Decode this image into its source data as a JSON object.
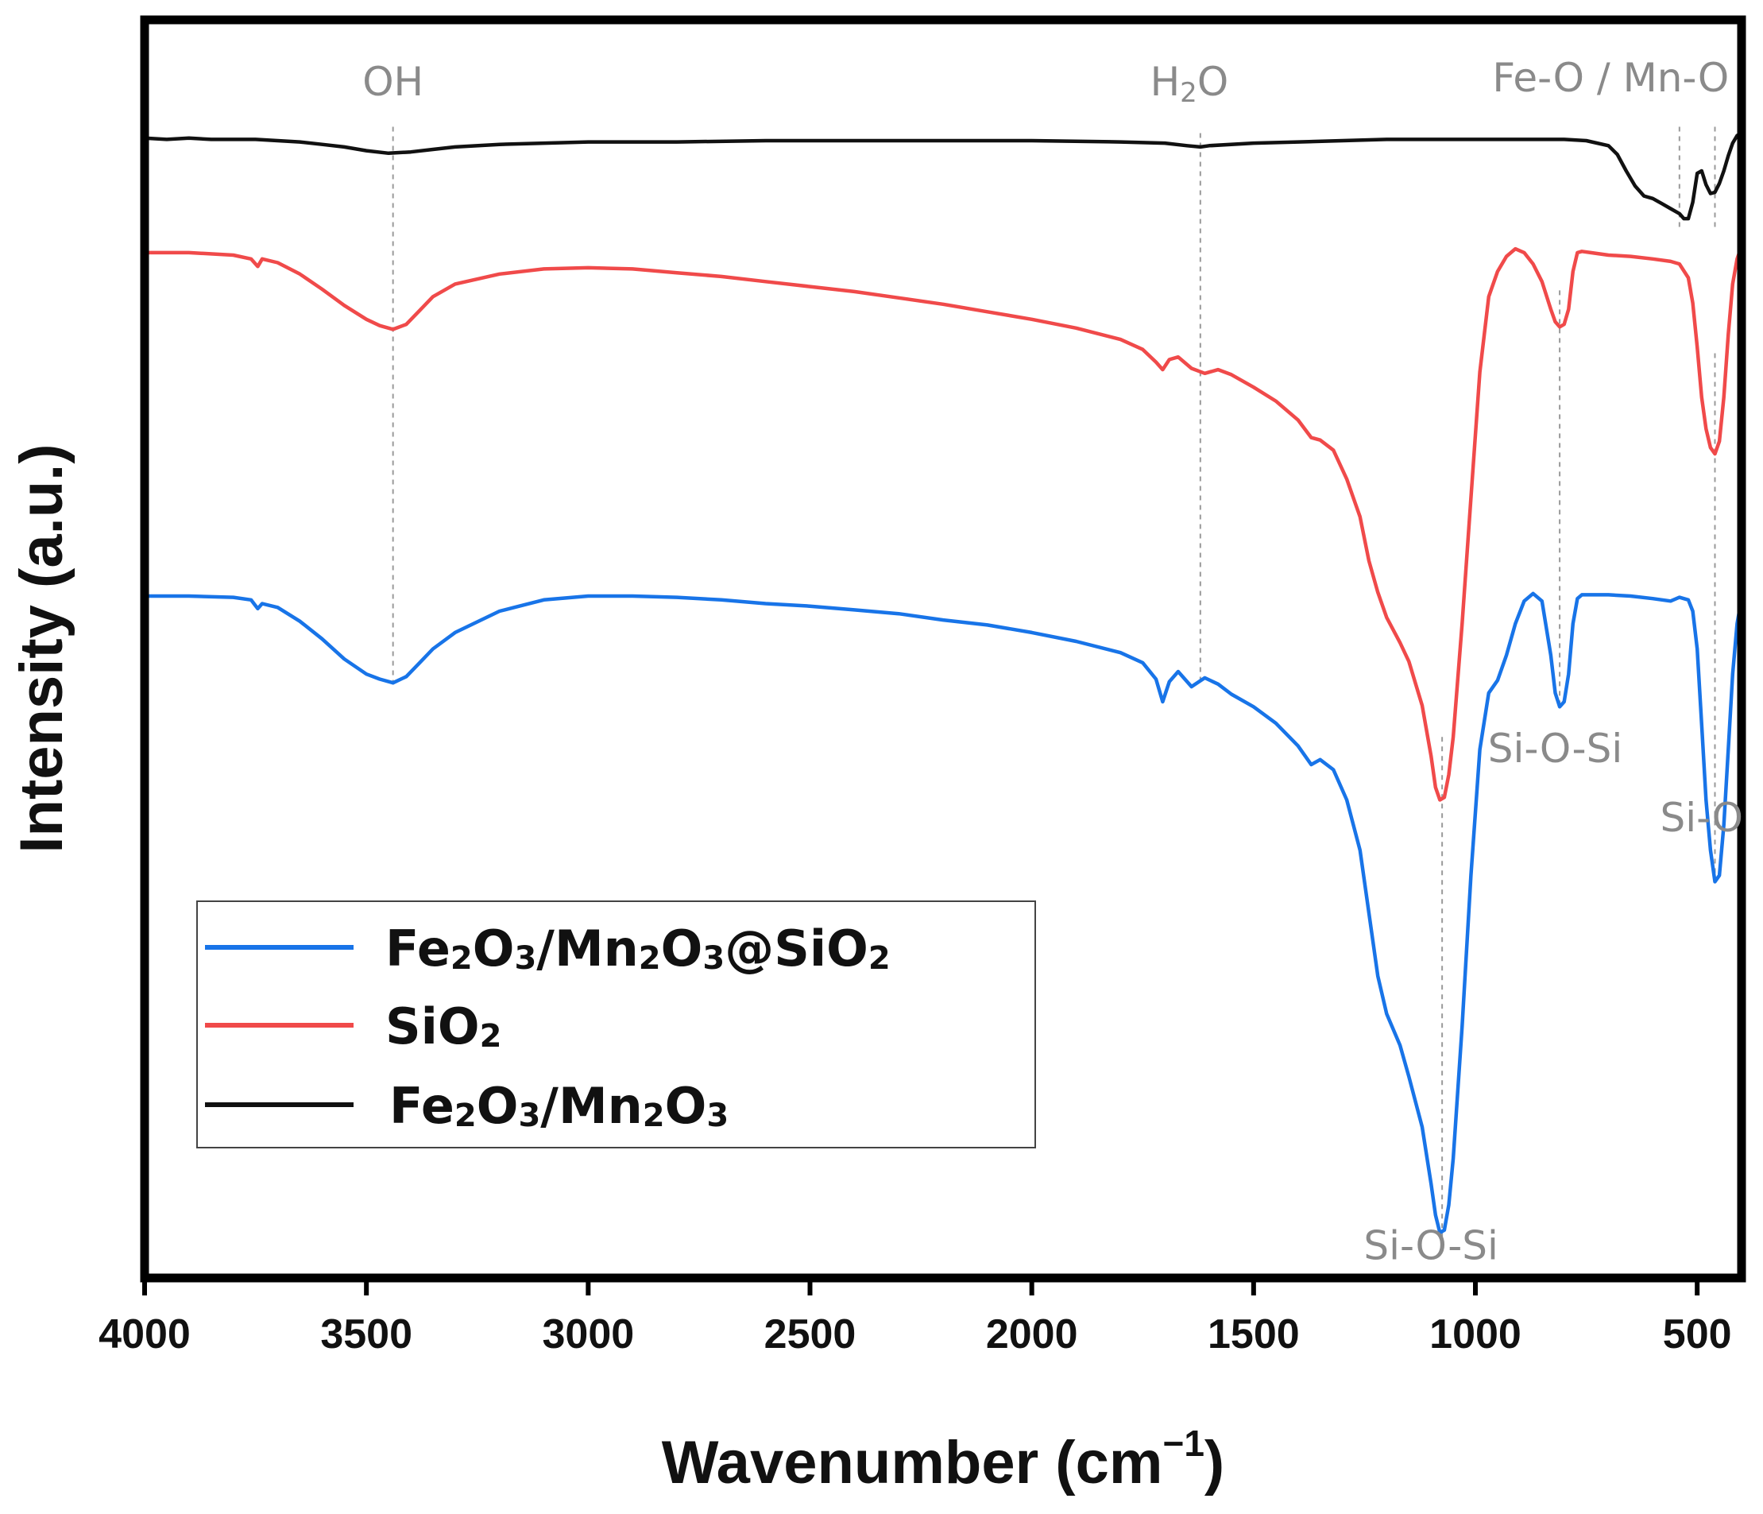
{
  "chart_data": {
    "type": "line",
    "title": "",
    "xlabel": "Wavenumber (cm",
    "xlabel_sup": "−1",
    "xlabel_close": ")",
    "ylabel": "Intensity (a.u.)",
    "xlim": [
      4000,
      400
    ],
    "ylim": [
      0,
      100
    ],
    "x_ticks": [
      4000,
      3500,
      3000,
      2500,
      2000,
      1500,
      1000,
      500
    ],
    "x_tick_labels": [
      "4000",
      "3500",
      "3000",
      "2500",
      "2000",
      "1500",
      "1000",
      "500"
    ],
    "y_ticks_shown": false,
    "grid": false,
    "legend_position": "lower-left",
    "series": [
      {
        "name": "Fe2O3/Mn2O3@SiO2",
        "legend_parts": [
          [
            "Fe",
            ""
          ],
          [
            "2",
            "sub"
          ],
          [
            "O",
            ""
          ],
          [
            "3",
            "sub"
          ],
          [
            "/Mn",
            ""
          ],
          [
            "2",
            "sub"
          ],
          [
            "O",
            ""
          ],
          [
            "3",
            "sub"
          ],
          [
            "@SiO",
            ""
          ],
          [
            "2",
            "sub"
          ]
        ],
        "color": "#1874e8",
        "x": [
          4000,
          3900,
          3800,
          3760,
          3745,
          3735,
          3700,
          3650,
          3600,
          3550,
          3500,
          3470,
          3440,
          3410,
          3380,
          3350,
          3300,
          3200,
          3100,
          3000,
          2900,
          2800,
          2700,
          2600,
          2500,
          2400,
          2300,
          2200,
          2100,
          2000,
          1900,
          1800,
          1750,
          1720,
          1705,
          1690,
          1670,
          1640,
          1610,
          1580,
          1550,
          1500,
          1450,
          1400,
          1370,
          1350,
          1320,
          1290,
          1260,
          1240,
          1220,
          1200,
          1170,
          1150,
          1120,
          1100,
          1090,
          1080,
          1070,
          1060,
          1050,
          1030,
          1010,
          990,
          970,
          950,
          930,
          910,
          890,
          870,
          850,
          830,
          820,
          810,
          800,
          790,
          780,
          770,
          760,
          740,
          700,
          650,
          600,
          560,
          540,
          520,
          510,
          500,
          490,
          480,
          470,
          460,
          450,
          440,
          430,
          420,
          410,
          400
        ],
        "y": [
          54.2,
          54.2,
          54.1,
          53.9,
          53.2,
          53.6,
          53.3,
          52.2,
          50.8,
          49.2,
          48.0,
          47.6,
          47.3,
          47.8,
          48.9,
          50.0,
          51.3,
          53.0,
          53.9,
          54.2,
          54.2,
          54.1,
          53.9,
          53.6,
          53.4,
          53.1,
          52.8,
          52.3,
          51.9,
          51.3,
          50.6,
          49.7,
          48.9,
          47.6,
          45.8,
          47.4,
          48.2,
          47.0,
          47.7,
          47.2,
          46.4,
          45.4,
          44.1,
          42.3,
          40.8,
          41.2,
          40.4,
          38.0,
          34.0,
          29.0,
          24.0,
          21.0,
          18.5,
          16.0,
          12.0,
          7.5,
          5.0,
          3.6,
          3.8,
          5.8,
          9.5,
          20.0,
          32.0,
          42.0,
          46.5,
          47.5,
          49.5,
          52.0,
          53.8,
          54.4,
          53.8,
          49.5,
          46.5,
          45.4,
          45.8,
          48.0,
          52.0,
          54.0,
          54.3,
          54.3,
          54.3,
          54.2,
          54.0,
          53.8,
          54.1,
          53.9,
          53.0,
          50.0,
          44.0,
          38.0,
          34.0,
          31.5,
          32.0,
          36.0,
          42.0,
          48.0,
          52.0,
          54.0
        ]
      },
      {
        "name": "SiO2",
        "legend_parts": [
          [
            "SiO",
            ""
          ],
          [
            "2",
            "sub"
          ]
        ],
        "color": "#f04a4a",
        "x": [
          4000,
          3900,
          3800,
          3760,
          3745,
          3735,
          3700,
          3650,
          3600,
          3550,
          3500,
          3470,
          3440,
          3410,
          3380,
          3350,
          3300,
          3200,
          3100,
          3000,
          2900,
          2800,
          2700,
          2600,
          2500,
          2400,
          2300,
          2200,
          2100,
          2000,
          1900,
          1800,
          1750,
          1720,
          1705,
          1690,
          1670,
          1640,
          1610,
          1580,
          1550,
          1500,
          1450,
          1400,
          1370,
          1350,
          1320,
          1290,
          1260,
          1240,
          1220,
          1200,
          1170,
          1150,
          1120,
          1100,
          1090,
          1080,
          1070,
          1060,
          1050,
          1030,
          1010,
          990,
          970,
          950,
          930,
          910,
          890,
          870,
          850,
          830,
          820,
          810,
          800,
          790,
          780,
          770,
          760,
          740,
          700,
          650,
          600,
          560,
          540,
          520,
          510,
          500,
          490,
          480,
          470,
          460,
          450,
          440,
          430,
          420,
          410,
          400
        ],
        "y": [
          81.5,
          81.5,
          81.3,
          81.0,
          80.4,
          81.0,
          80.7,
          79.8,
          78.6,
          77.3,
          76.2,
          75.7,
          75.4,
          75.8,
          76.9,
          78.0,
          79.0,
          79.8,
          80.2,
          80.3,
          80.2,
          79.9,
          79.6,
          79.2,
          78.8,
          78.4,
          77.9,
          77.4,
          76.8,
          76.2,
          75.5,
          74.6,
          73.8,
          72.8,
          72.2,
          73.0,
          73.2,
          72.3,
          71.9,
          72.2,
          71.8,
          70.8,
          69.7,
          68.2,
          66.8,
          66.6,
          65.8,
          63.5,
          60.5,
          57.0,
          54.5,
          52.5,
          50.5,
          49.0,
          45.5,
          41.5,
          39.0,
          38.0,
          38.2,
          40.0,
          43.0,
          52.0,
          62.0,
          72.0,
          78.0,
          80.0,
          81.2,
          81.8,
          81.5,
          80.6,
          79.2,
          77.0,
          76.0,
          75.6,
          75.8,
          77.0,
          80.0,
          81.5,
          81.6,
          81.5,
          81.3,
          81.2,
          81.0,
          80.8,
          80.6,
          79.5,
          77.5,
          74.0,
          70.0,
          67.5,
          66.0,
          65.5,
          66.5,
          70.0,
          75.0,
          79.0,
          81.0,
          82.0
        ]
      },
      {
        "name": "Fe2O3/Mn2O3",
        "legend_parts": [
          [
            "Fe",
            ""
          ],
          [
            "2",
            "sub"
          ],
          [
            "O",
            ""
          ],
          [
            "3",
            "sub"
          ],
          [
            "/Mn",
            ""
          ],
          [
            "2",
            "sub"
          ],
          [
            "O",
            ""
          ],
          [
            "3",
            "sub"
          ]
        ],
        "color": "#111111",
        "x": [
          4000,
          3950,
          3900,
          3850,
          3800,
          3750,
          3700,
          3650,
          3600,
          3550,
          3500,
          3450,
          3400,
          3350,
          3300,
          3200,
          3000,
          2800,
          2600,
          2400,
          2200,
          2000,
          1800,
          1700,
          1650,
          1620,
          1600,
          1500,
          1400,
          1300,
          1200,
          1100,
          1000,
          900,
          800,
          750,
          700,
          680,
          660,
          640,
          620,
          600,
          580,
          560,
          540,
          530,
          520,
          510,
          500,
          490,
          480,
          470,
          460,
          450,
          440,
          430,
          420,
          410,
          400
        ],
        "y": [
          90.6,
          90.5,
          90.6,
          90.5,
          90.5,
          90.5,
          90.4,
          90.3,
          90.1,
          89.9,
          89.6,
          89.4,
          89.5,
          89.7,
          89.9,
          90.1,
          90.3,
          90.3,
          90.4,
          90.4,
          90.4,
          90.4,
          90.3,
          90.2,
          90.0,
          89.9,
          90.0,
          90.2,
          90.3,
          90.4,
          90.5,
          90.5,
          90.5,
          90.5,
          90.5,
          90.4,
          90.0,
          89.3,
          88.0,
          86.8,
          86.0,
          85.8,
          85.4,
          85.0,
          84.6,
          84.2,
          84.2,
          85.5,
          87.8,
          88.0,
          86.9,
          86.2,
          86.3,
          87.0,
          88.0,
          89.2,
          90.2,
          90.8,
          91.0
        ]
      }
    ],
    "guides": [
      {
        "x": 3440,
        "y_top": 91.5,
        "y_bottom": 47.0
      },
      {
        "x": 1620,
        "y_top": 91.0,
        "y_bottom": 47.5
      },
      {
        "x": 1075,
        "y_top": 43.0,
        "y_bottom": 3.0
      },
      {
        "x": 540,
        "y_top": 91.5,
        "y_bottom": 83.5
      },
      {
        "x": 460,
        "y_top": 91.5,
        "y_bottom": 83.5
      },
      {
        "x": 810,
        "y_top": 78.5,
        "y_bottom": 45.5
      },
      {
        "x": 460,
        "y_top": 73.5,
        "y_bottom": 31.5
      }
    ],
    "annotations": [
      {
        "label": "OH",
        "x": 3440,
        "y": 94.0,
        "anchor": "middle"
      },
      {
        "label": "H",
        "sub": "2",
        "tail": "O",
        "x": 1645,
        "y": 94.0,
        "anchor": "middle"
      },
      {
        "label": "Fe-O / Mn-O",
        "x": 695,
        "y": 94.3,
        "anchor": "middle"
      },
      {
        "label": "Si-O-Si",
        "x": 820,
        "y": 41.0,
        "anchor": "middle"
      },
      {
        "label": "Si-O",
        "x": 490,
        "y": 35.5,
        "anchor": "middle"
      },
      {
        "label": "Si-O-Si",
        "x": 1100,
        "y": 1.5,
        "anchor": "middle"
      }
    ]
  }
}
